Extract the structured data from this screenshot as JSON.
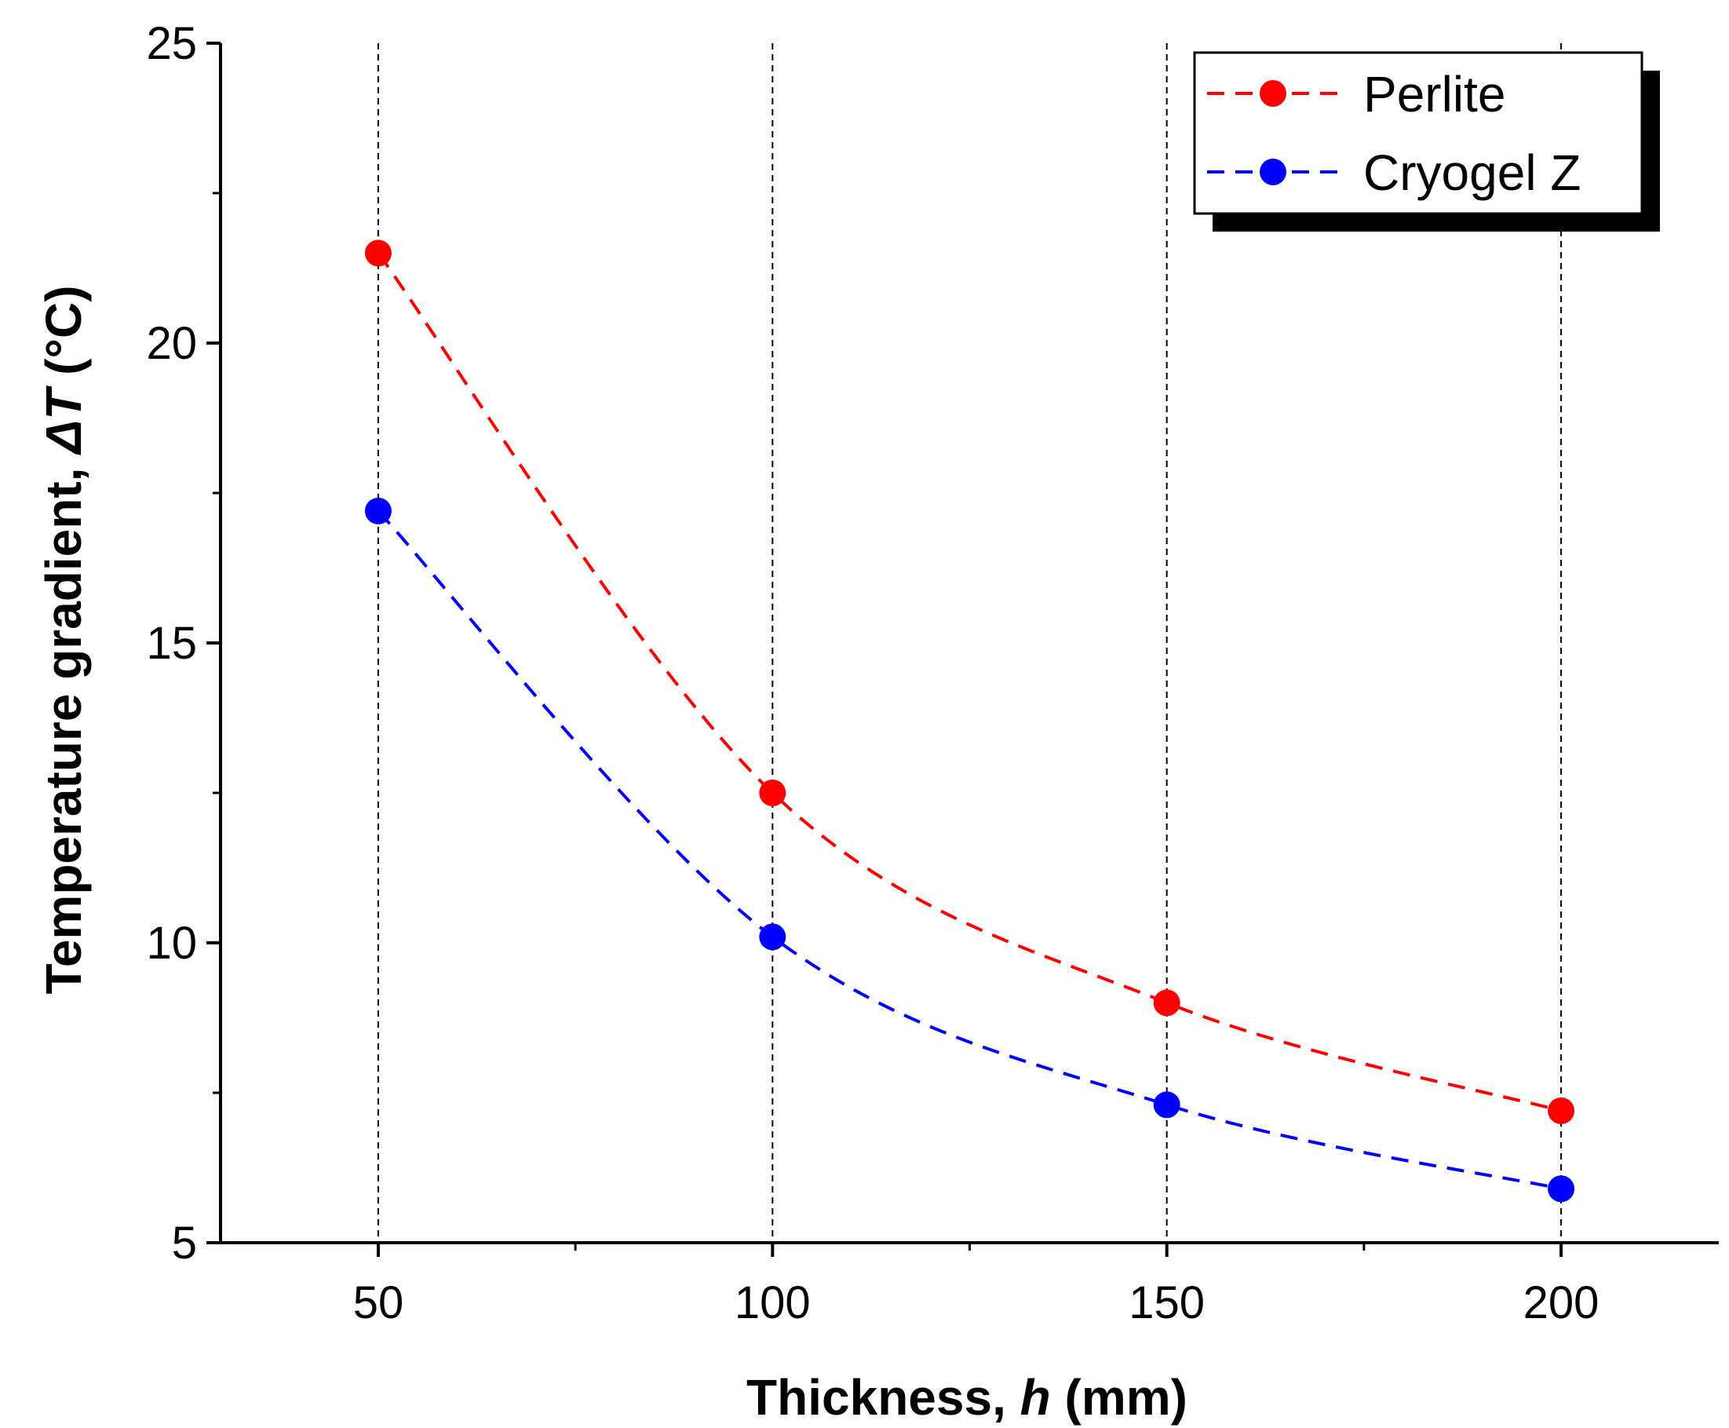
{
  "chart_data": {
    "type": "line",
    "title": "",
    "xlabel_prefix": "Thickness, ",
    "xlabel_var": "h",
    "xlabel_suffix": " (mm)",
    "ylabel_prefix": "Temperature gradient, ",
    "ylabel_var": "ΔT",
    "ylabel_suffix": " (°C)",
    "xlim": [
      30,
      220
    ],
    "ylim": [
      5,
      25
    ],
    "x": [
      50,
      100,
      150,
      200
    ],
    "xticks": [
      50,
      100,
      150,
      200
    ],
    "xtick_labels": [
      "50",
      "100",
      "150",
      "200"
    ],
    "xminor_ticks": [
      75,
      125,
      175
    ],
    "yticks": [
      5,
      10,
      15,
      20,
      25
    ],
    "ytick_labels": [
      "5",
      "10",
      "15",
      "20",
      "25"
    ],
    "yminor_ticks": [
      7.5,
      12.5,
      17.5,
      22.5
    ],
    "vertical_gridlines_at": [
      50,
      100,
      150,
      200
    ],
    "legend_position": "top-right",
    "series": [
      {
        "name": "Perlite",
        "color": "#ff0000",
        "values": [
          21.5,
          12.5,
          9.0,
          7.2
        ]
      },
      {
        "name": "Cryogel Z",
        "color": "#0000ff",
        "values": [
          17.2,
          10.1,
          7.3,
          5.9
        ]
      }
    ]
  }
}
